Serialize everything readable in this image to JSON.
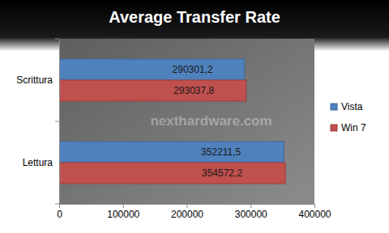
{
  "chart_data": {
    "type": "bar",
    "orientation": "horizontal",
    "title": "Average Transfer Rate",
    "categories": [
      "Scrittura",
      "Lettura"
    ],
    "series": [
      {
        "name": "Vista",
        "color": "#4f81bd",
        "values": [
          290301.2,
          352211.5
        ],
        "value_labels": [
          "290301,2",
          "352211,5"
        ]
      },
      {
        "name": "Win 7",
        "color": "#c0504d",
        "values": [
          293037.8,
          354572.2
        ],
        "value_labels": [
          "293037,8",
          "354572,2"
        ]
      }
    ],
    "xlim": [
      0,
      400000
    ],
    "xticks": [
      0,
      100000,
      200000,
      300000,
      400000
    ],
    "data_labels": true,
    "legend": "right",
    "grid": false,
    "annotations": [
      "nexthardware.com"
    ]
  }
}
